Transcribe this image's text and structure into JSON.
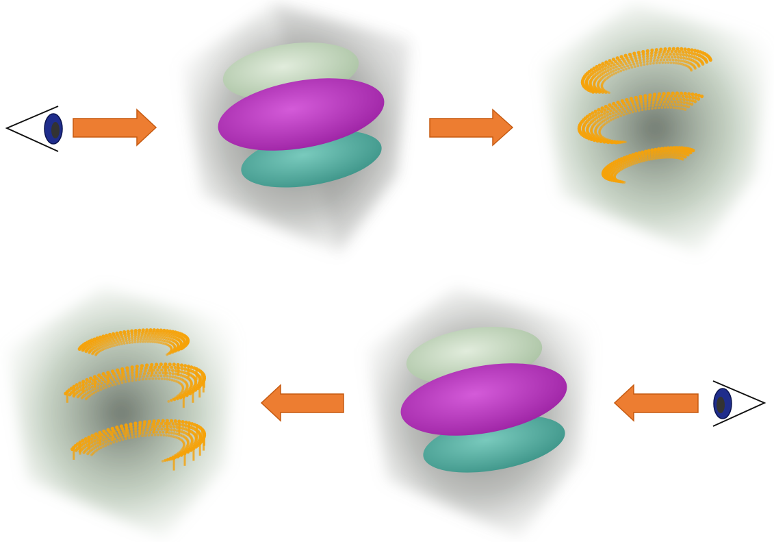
{
  "colors": {
    "background": "#ffffff",
    "arrow_fill": "#ed7d31",
    "arrow_stroke": "#c55a11",
    "eye_iris": "#1f2d8c",
    "eye_pupil": "#333333",
    "eye_lines": "#111111",
    "ellipsoid_top": "#c9dcc3",
    "ellipsoid_middle": "#c23fc8",
    "ellipsoid_bottom": "#5bb5a8",
    "surface_points": "#f5a20a",
    "volume_shadow": "#3a3a3a",
    "volume_tint": "#7f9a7a"
  },
  "rows": [
    {
      "direction": "left-to-right",
      "viewer_icon": "eye-icon",
      "steps": [
        "input-volume-ellipsoids",
        "extracted-visible-surface-points"
      ]
    },
    {
      "direction": "right-to-left",
      "viewer_icon": "eye-icon",
      "steps": [
        "input-volume-ellipsoids",
        "extracted-visible-surface-points"
      ]
    }
  ]
}
